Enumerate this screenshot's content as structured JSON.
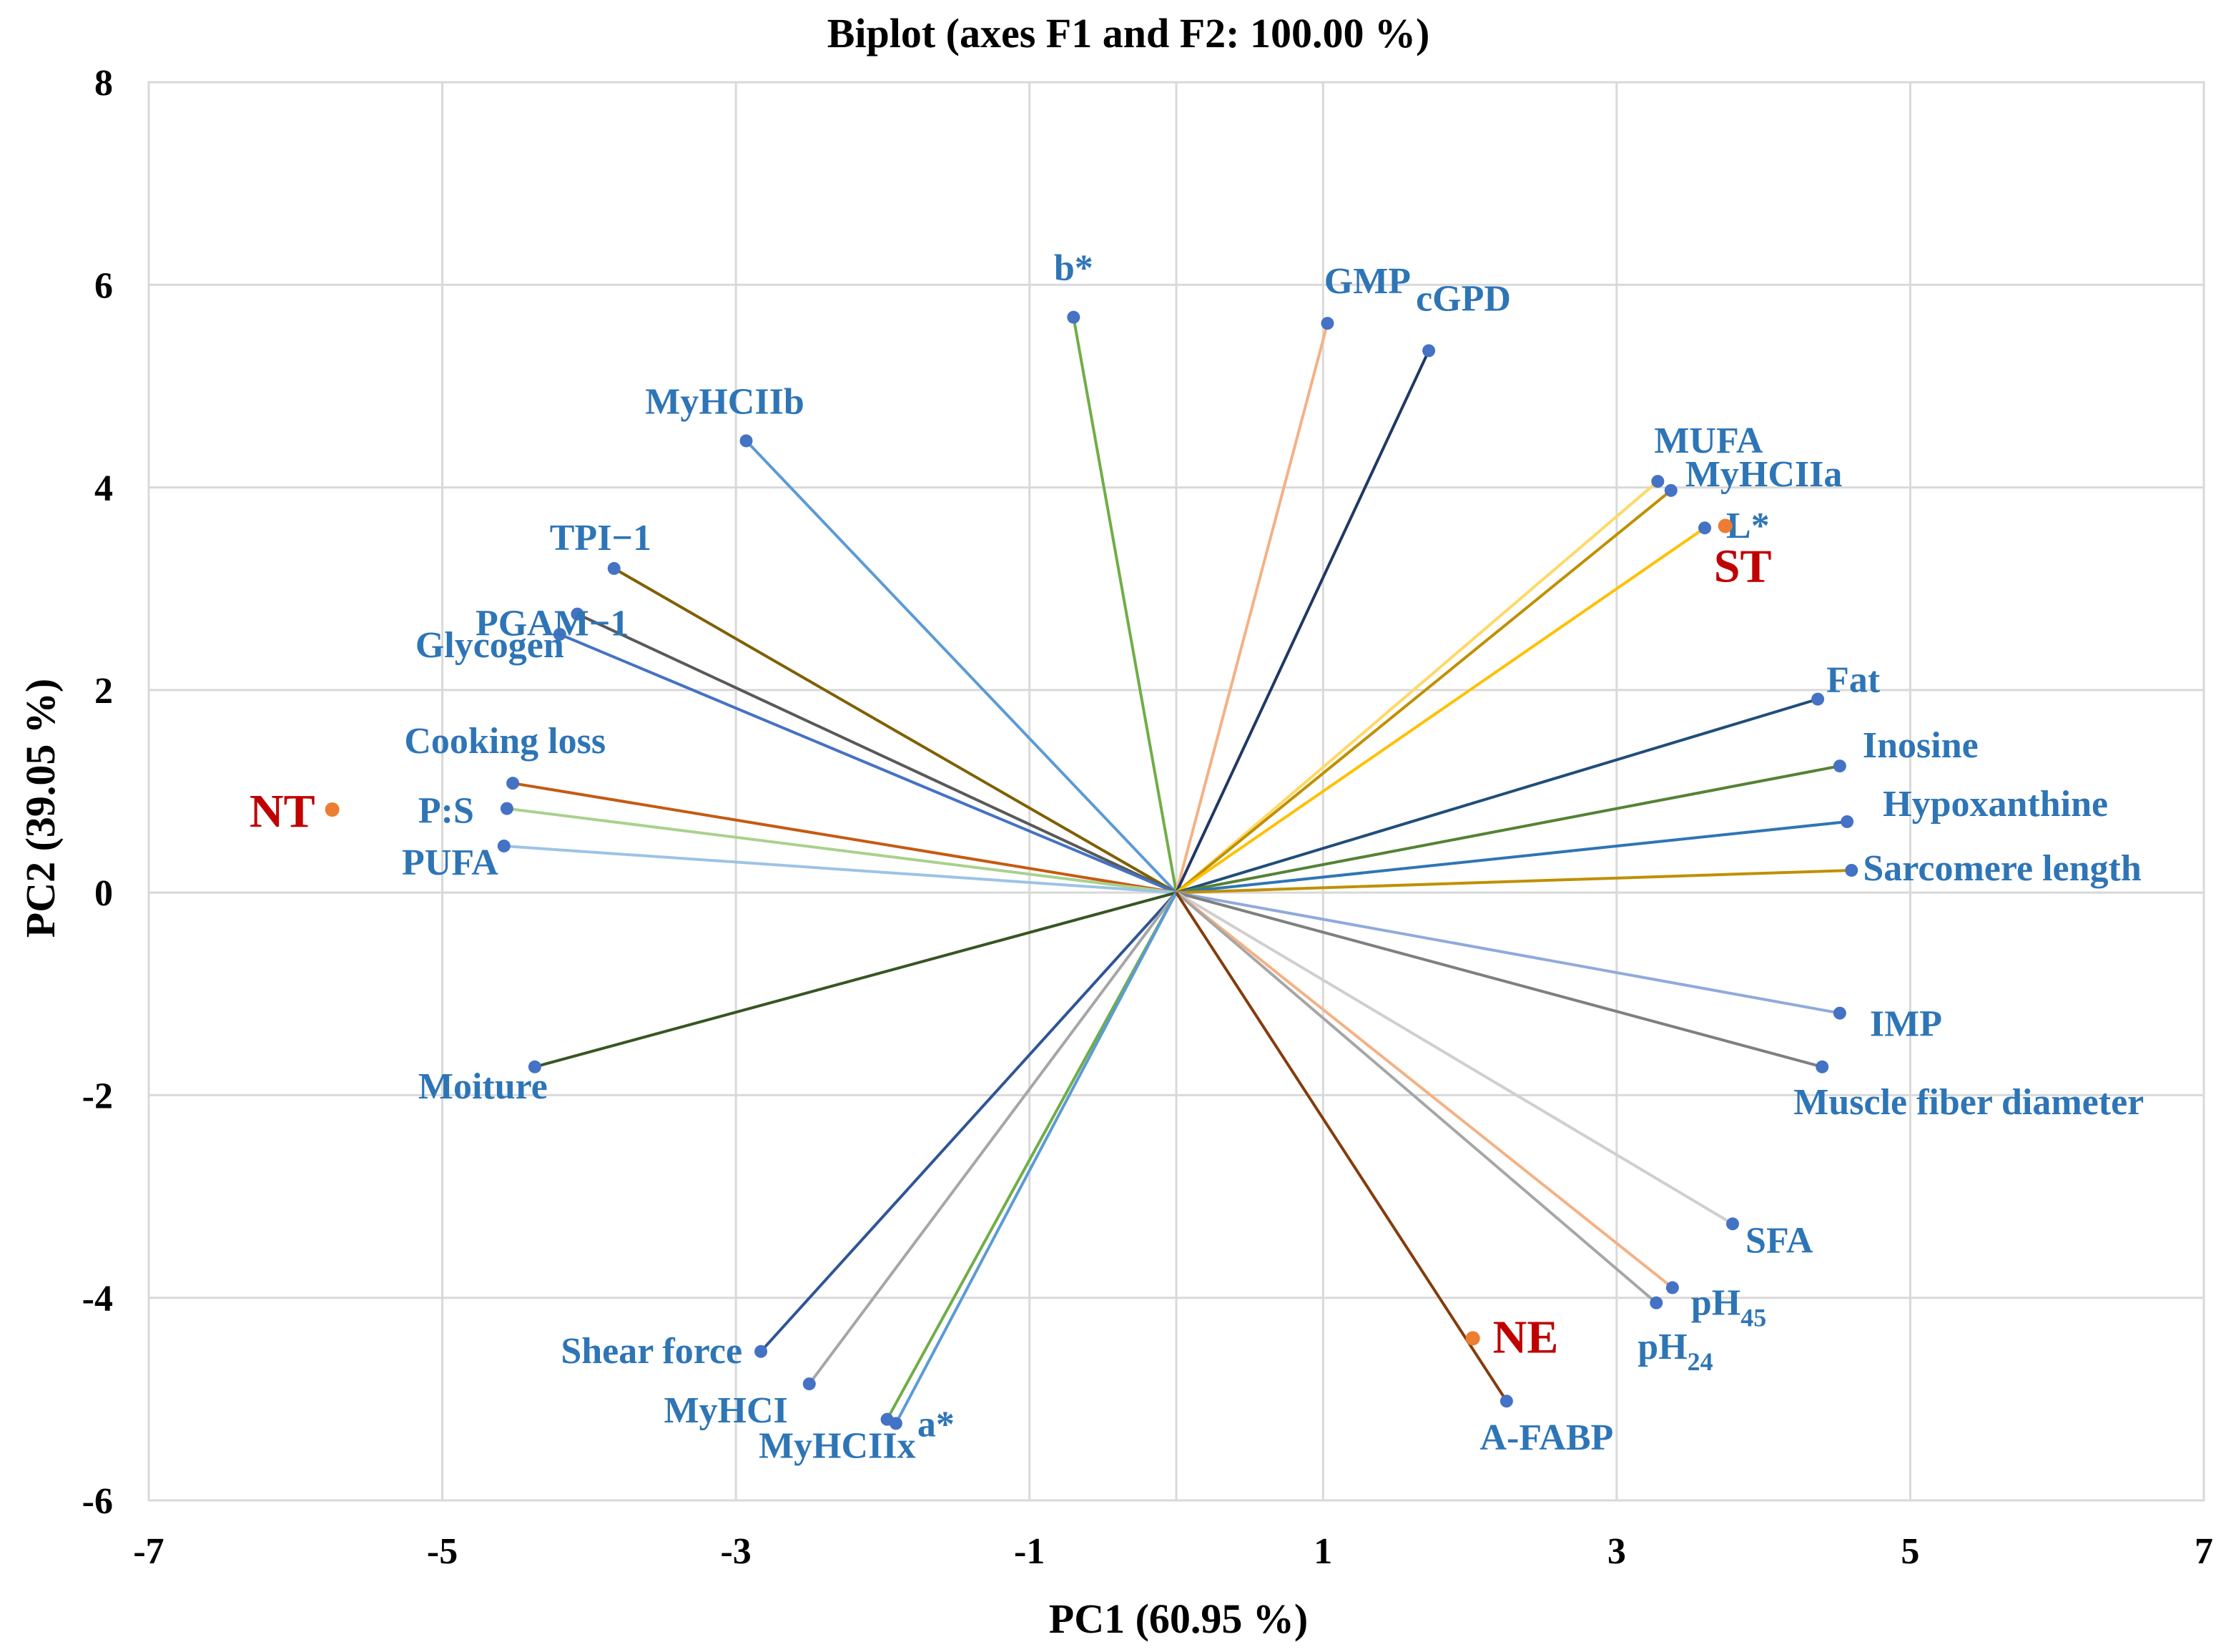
{
  "chart_data": {
    "type": "scatter",
    "subtype": "biplot",
    "title": "Biplot (axes F1 and F2: 100.00 %)",
    "xlabel": "PC1 (60.95 %)",
    "ylabel": "PC2 (39.05 %)",
    "xlim": [
      -7,
      7
    ],
    "ylim": [
      -6,
      8
    ],
    "xticks": [
      -7,
      -5,
      -3,
      -1,
      1,
      3,
      5,
      7
    ],
    "yticks": [
      -6,
      -4,
      -2,
      0,
      2,
      4,
      6,
      8
    ],
    "grid": true,
    "colors": {
      "variable_point": "#4472c4",
      "variable_label": "#2e75b6",
      "observation_point": "#ed7d31",
      "observation_label": "#c00000"
    },
    "variables": [
      {
        "name": "b*",
        "x": -0.7,
        "y": 5.68,
        "color": "#70ad47",
        "label": "b*",
        "anchor": "middle"
      },
      {
        "name": "GMP",
        "x": 1.03,
        "y": 5.62,
        "color": "#f4b183",
        "label": "GMP",
        "anchor": "middle"
      },
      {
        "name": "cGPD",
        "x": 1.72,
        "y": 5.35,
        "color": "#203864",
        "label": "cGPD",
        "anchor": "start"
      },
      {
        "name": "MyHCIIb",
        "x": -2.93,
        "y": 4.46,
        "color": "#5b9bd5",
        "label": "MyHCIIb",
        "anchor": "middle"
      },
      {
        "name": "MUFA",
        "x": 3.28,
        "y": 4.06,
        "color": "#ffd966",
        "label": "MUFA",
        "anchor": "start"
      },
      {
        "name": "MyHCIIa",
        "x": 3.37,
        "y": 3.97,
        "color": "#bf9000",
        "label": "MyHCIIa",
        "anchor": "start"
      },
      {
        "name": "L*",
        "x": 3.6,
        "y": 3.6,
        "color": "#ffc000",
        "label": "L*",
        "anchor": "start"
      },
      {
        "name": "TPI-1",
        "x": -3.83,
        "y": 3.2,
        "color": "#7f6000",
        "label": "TPI−1",
        "anchor": "start"
      },
      {
        "name": "PGAM-1",
        "x": -4.08,
        "y": 2.75,
        "color": "#595959",
        "label": "PGAM−1",
        "anchor": "end"
      },
      {
        "name": "Glycogen",
        "x": -4.2,
        "y": 2.55,
        "color": "#4472c4",
        "label": "Glycogen",
        "anchor": "end"
      },
      {
        "name": "Fat",
        "x": 4.37,
        "y": 1.91,
        "color": "#1f4e79",
        "label": "Fat",
        "anchor": "start"
      },
      {
        "name": "Inosine",
        "x": 4.52,
        "y": 1.25,
        "color": "#548235",
        "label": "Inosine",
        "anchor": "start"
      },
      {
        "name": "Cooking loss",
        "x": -4.52,
        "y": 1.08,
        "color": "#c55a11",
        "label": "Cooking loss",
        "anchor": "end"
      },
      {
        "name": "P:S",
        "x": -4.56,
        "y": 0.83,
        "color": "#a9d18e",
        "label": "P:S",
        "anchor": "end"
      },
      {
        "name": "Hypoxanthine",
        "x": 4.57,
        "y": 0.7,
        "color": "#2e75b6",
        "label": "Hypoxanthine",
        "anchor": "start"
      },
      {
        "name": "PUFA",
        "x": -4.58,
        "y": 0.46,
        "color": "#9dc3e6",
        "label": "PUFA",
        "anchor": "end"
      },
      {
        "name": "Sarcomere length",
        "x": 4.6,
        "y": 0.22,
        "color": "#bf9000",
        "label": "Sarcomere length",
        "anchor": "start"
      },
      {
        "name": "IMP",
        "x": 4.52,
        "y": -1.19,
        "color": "#8faadc",
        "label": "IMP",
        "anchor": "start"
      },
      {
        "name": "Muscle fiber diameter",
        "x": 4.4,
        "y": -1.72,
        "color": "#7f7f7f",
        "label": "Muscle fiber diameter",
        "anchor": "start"
      },
      {
        "name": "Moiture",
        "x": -4.37,
        "y": -1.72,
        "color": "#375623",
        "label": "Moiture",
        "anchor": "end"
      },
      {
        "name": "SFA",
        "x": 3.79,
        "y": -3.27,
        "color": "#d0cece",
        "label": "SFA",
        "anchor": "start"
      },
      {
        "name": "pH45",
        "x": 3.38,
        "y": -3.9,
        "color": "#f4b183",
        "label": "pH",
        "sub": "45",
        "anchor": "start"
      },
      {
        "name": "pH24",
        "x": 3.27,
        "y": -4.05,
        "color": "#a6a6a6",
        "label": "pH",
        "sub": "24",
        "anchor": "start"
      },
      {
        "name": "Shear force",
        "x": -2.83,
        "y": -4.53,
        "color": "#2f5597",
        "label": "Shear force",
        "anchor": "end"
      },
      {
        "name": "MyHCI",
        "x": -2.5,
        "y": -4.85,
        "color": "#a6a6a6",
        "label": "MyHCI",
        "anchor": "end"
      },
      {
        "name": "MyHCIIx",
        "x": -1.97,
        "y": -5.2,
        "color": "#70ad47",
        "label": "MyHCIIx",
        "anchor": "end"
      },
      {
        "name": "a*",
        "x": -1.91,
        "y": -5.24,
        "color": "#5b9bd5",
        "label": "a*",
        "anchor": "start"
      },
      {
        "name": "A-FABP",
        "x": 2.25,
        "y": -5.02,
        "color": "#843c0c",
        "label": "A-FABP",
        "anchor": "middle"
      }
    ],
    "observations": [
      {
        "name": "NT",
        "x": -5.75,
        "y": 0.82,
        "label": "NT"
      },
      {
        "name": "ST",
        "x": 3.74,
        "y": 3.62,
        "label": "ST"
      },
      {
        "name": "NE",
        "x": 2.02,
        "y": -4.4,
        "label": "NE"
      }
    ]
  }
}
